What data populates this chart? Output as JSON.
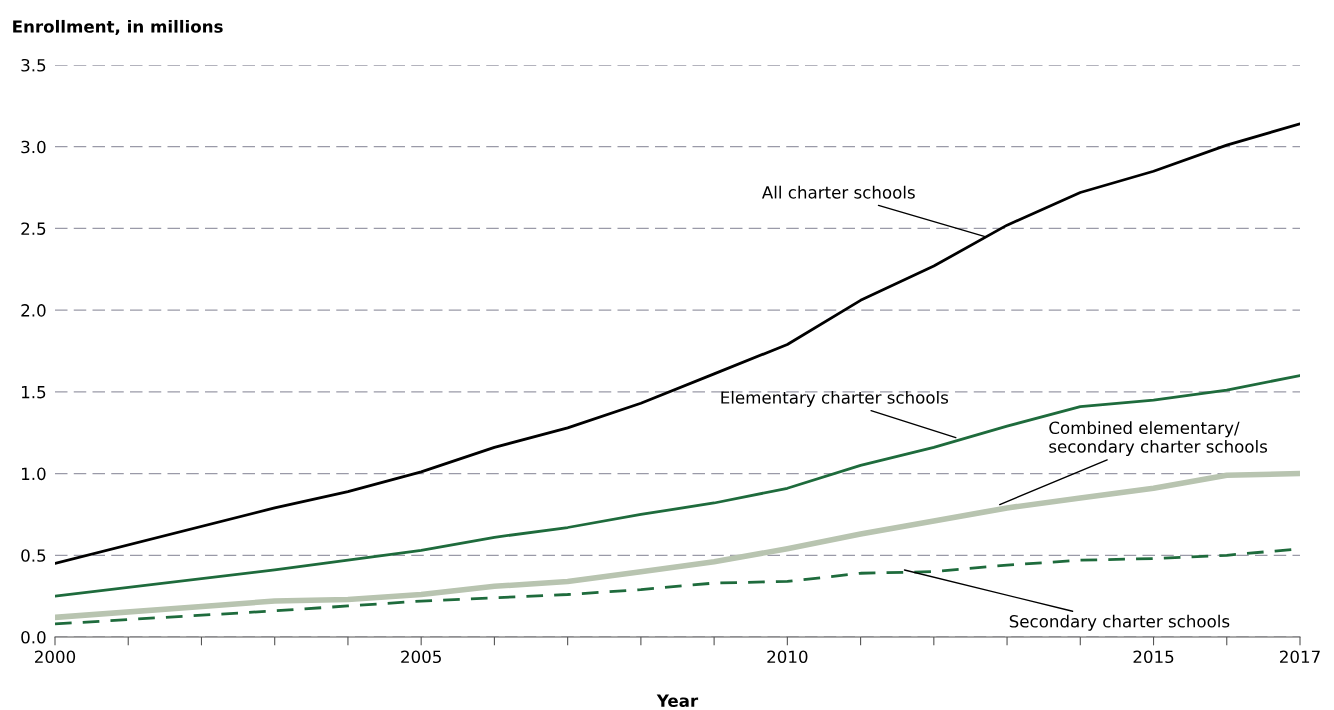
{
  "chart_data": {
    "type": "line",
    "x": [
      2000,
      2003,
      2004,
      2005,
      2006,
      2007,
      2008,
      2009,
      2010,
      2011,
      2012,
      2013,
      2014,
      2015,
      2016,
      2017
    ],
    "series": [
      {
        "color": "#000000",
        "line_style": "solid",
        "values": [
          0.45,
          0.79,
          0.89,
          1.01,
          1.16,
          1.28,
          1.43,
          1.61,
          1.79,
          2.06,
          2.27,
          2.52,
          2.72,
          2.85,
          3.01,
          3.14
        ]
      },
      {
        "color": "#1e6b3c",
        "line_style": "solid",
        "values": [
          0.25,
          0.41,
          0.47,
          0.53,
          0.61,
          0.67,
          0.75,
          0.82,
          0.91,
          1.05,
          1.16,
          1.29,
          1.41,
          1.45,
          1.51,
          1.6
        ]
      },
      {
        "color": "#b8c4b0",
        "line_style": "solid",
        "values": [
          0.12,
          0.22,
          0.23,
          0.26,
          0.31,
          0.34,
          0.4,
          0.46,
          0.54,
          0.63,
          0.71,
          0.79,
          0.85,
          0.91,
          0.99,
          1.0
        ]
      },
      {
        "color": "#1e6b3c",
        "line_style": "dashed",
        "values": [
          0.08,
          0.16,
          0.19,
          0.22,
          0.24,
          0.26,
          0.29,
          0.33,
          0.34,
          0.39,
          0.4,
          0.44,
          0.47,
          0.48,
          0.5,
          0.54
        ]
      }
    ],
    "annotations": [
      {
        "text": "All charter schools",
        "x": 2012.7,
        "y": 2.45
      },
      {
        "text": "Elementary charter schools",
        "x": 2012.3,
        "y": 1.22
      },
      {
        "text": "Combined elementary/\nsecondary charter schools",
        "x": 2012.9,
        "y": 0.81
      },
      {
        "text": "Secondary charter schools",
        "x": 2011.6,
        "y": 0.41
      }
    ],
    "xlabel": "Year",
    "ylabel": "Enrollment, in millions",
    "xlim": [
      2000,
      2017
    ],
    "xticks": [
      2000,
      {
        "value": 2001,
        "label": null
      },
      {
        "value": 2002,
        "label": null
      },
      {
        "value": 2003,
        "label": null
      },
      {
        "value": 2004,
        "label": null
      },
      2005,
      {
        "value": 2006,
        "label": null
      },
      {
        "value": 2007,
        "label": null
      },
      {
        "value": 2008,
        "label": null
      },
      {
        "value": 2009,
        "label": null
      },
      2010,
      {
        "value": 2011,
        "label": null
      },
      {
        "value": 2012,
        "label": null
      },
      {
        "value": 2013,
        "label": null
      },
      {
        "value": 2014,
        "label": null
      },
      2015,
      {
        "value": 2016,
        "label": null
      },
      2017
    ],
    "ylim": [
      0,
      3.5
    ],
    "yticks": [
      {
        "value": 0,
        "label": "0.0"
      },
      0.5,
      {
        "value": 1,
        "label": "1.0"
      },
      1.5,
      {
        "value": 2,
        "label": "2.0"
      },
      2.5,
      {
        "value": 3,
        "label": "3.0"
      },
      3.5
    ],
    "grid": "y",
    "legend": false
  }
}
